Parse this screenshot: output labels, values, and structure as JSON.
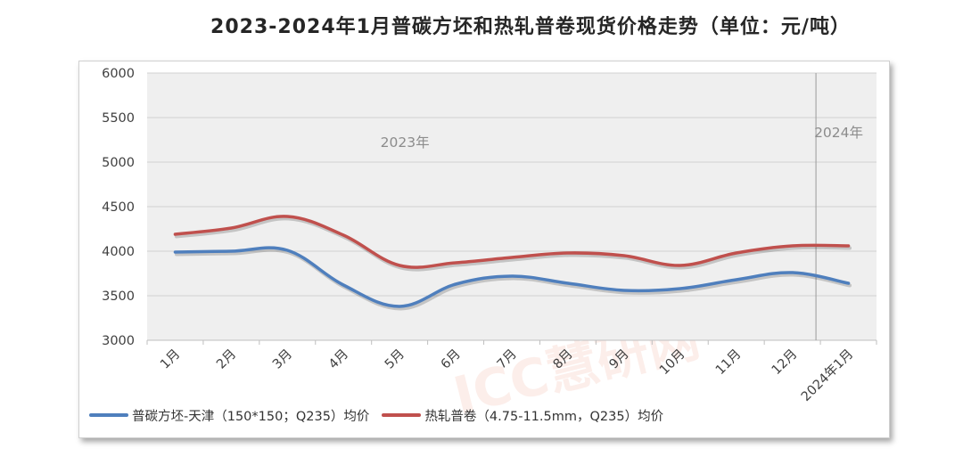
{
  "chart_data": {
    "type": "line",
    "title": "2023-2024年1月普碳方坯和热轧普卷现货价格走势（单位：元/吨）",
    "categories": [
      "1月",
      "2月",
      "3月",
      "4月",
      "5月",
      "6月",
      "7月",
      "8月",
      "9月",
      "10月",
      "11月",
      "12月",
      "2024年1月"
    ],
    "ylim": [
      3000,
      6000
    ],
    "yticks": [
      3000,
      3500,
      4000,
      4500,
      5000,
      5500,
      6000
    ],
    "grid": true,
    "legend_position": "bottom",
    "annotations": [
      "2023年",
      "2024年"
    ],
    "series": [
      {
        "name": "普碳方坯-天津（150*150；Q235）均价",
        "color": "#4f7fbd",
        "values": [
          3990,
          4000,
          4010,
          3620,
          3380,
          3630,
          3720,
          3640,
          3560,
          3580,
          3680,
          3760,
          3640
        ]
      },
      {
        "name": "热轧普卷（4.75-11.5mm，Q235）均价",
        "color": "#c0504d",
        "values": [
          4190,
          4260,
          4390,
          4180,
          3840,
          3870,
          3930,
          3980,
          3950,
          3840,
          3980,
          4060,
          4060
        ]
      }
    ]
  },
  "watermark": "ICC慧研网"
}
